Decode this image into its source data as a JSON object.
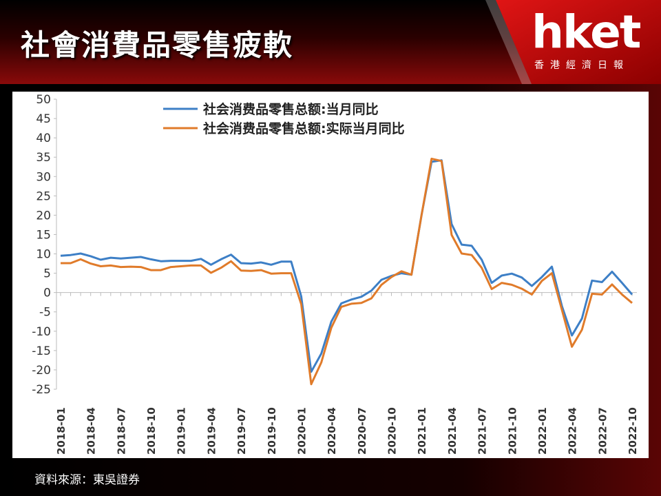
{
  "header": {
    "title": "社會消費品零售疲軟",
    "logo": "hket",
    "logo_subtitle": "香港經濟日報"
  },
  "source": "資料來源：東吳證券",
  "chart_data": {
    "type": "line",
    "categories": [
      "2018-01",
      null,
      null,
      "2018-04",
      null,
      null,
      "2018-07",
      null,
      null,
      "2018-10",
      null,
      null,
      "2019-01",
      null,
      null,
      "2019-04",
      null,
      null,
      "2019-07",
      null,
      null,
      "2019-10",
      null,
      null,
      "2020-01",
      null,
      null,
      "2020-04",
      null,
      null,
      "2020-07",
      null,
      null,
      "2020-10",
      null,
      null,
      "2021-01",
      null,
      null,
      "2021-04",
      null,
      null,
      "2021-07",
      null,
      null,
      "2021-10",
      null,
      null,
      "2022-01",
      null,
      null,
      "2022-04",
      null,
      null,
      "2022-07",
      null,
      null,
      "2022-10"
    ],
    "series": [
      {
        "name": "社会消费品零售总额:当月同比",
        "color": "#3d7fc6",
        "values": [
          9.5,
          9.7,
          10.1,
          9.4,
          8.5,
          9.0,
          8.8,
          9.0,
          9.2,
          8.6,
          8.1,
          8.2,
          8.2,
          8.2,
          8.7,
          7.2,
          8.6,
          9.8,
          7.6,
          7.5,
          7.8,
          7.2,
          8.0,
          8.0,
          -1.0,
          -20.5,
          -15.8,
          -7.5,
          -2.8,
          -1.8,
          -1.1,
          0.5,
          3.3,
          4.3,
          5.0,
          4.6,
          20.0,
          33.8,
          34.2,
          17.7,
          12.4,
          12.1,
          8.5,
          2.5,
          4.4,
          4.9,
          3.9,
          1.7,
          4.0,
          6.7,
          -3.5,
          -11.1,
          -6.7,
          3.1,
          2.7,
          5.4,
          2.5,
          -0.5
        ]
      },
      {
        "name": "社会消费品零售总额:实际当月同比",
        "color": "#e07b2a",
        "values": [
          7.6,
          7.6,
          8.6,
          7.5,
          6.8,
          7.0,
          6.6,
          6.7,
          6.6,
          5.8,
          5.8,
          6.6,
          6.8,
          7.0,
          7.0,
          5.1,
          6.4,
          8.1,
          5.7,
          5.6,
          5.8,
          4.9,
          5.0,
          5.0,
          -3.0,
          -23.7,
          -18.1,
          -9.1,
          -3.7,
          -2.9,
          -2.7,
          -1.5,
          2.0,
          4.0,
          5.5,
          4.6,
          20.0,
          34.6,
          34.0,
          14.9,
          10.1,
          9.7,
          6.4,
          0.9,
          2.5,
          2.0,
          1.0,
          -0.5,
          3.0,
          5.0,
          -4.5,
          -14.0,
          -9.6,
          -0.3,
          -0.5,
          2.1,
          -0.5,
          -2.7
        ]
      }
    ],
    "ylim": [
      -25,
      50
    ],
    "yticks": [
      -25,
      -20,
      -15,
      -10,
      -5,
      0,
      5,
      10,
      15,
      20,
      25,
      30,
      35,
      40,
      45,
      50
    ],
    "grid": false,
    "legend": "top"
  }
}
